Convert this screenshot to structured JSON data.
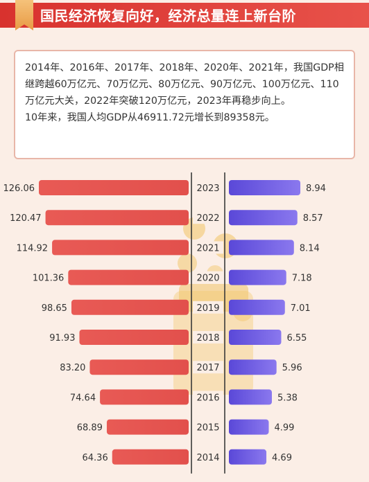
{
  "header": {
    "title": "国民经济恢复向好，经济总量连上新台阶"
  },
  "intro": {
    "paragraph1": "2014年、2016年、2017年、2018年、2020年、2021年，我国GDP相继跨越60万亿元、70万亿元、80万亿元、90万亿元、100万亿元、110万亿元大关，2022年突破120万亿元，2023年再稳步向上。",
    "paragraph2": "10年来，我国人均GDP从46911.72元增长到89358元。"
  },
  "colors": {
    "header_red": "#d8322e",
    "left_bar": "#e2504c",
    "right_bar": "#6f58e4",
    "axis_line": "#3a3a3a"
  },
  "chart_data": {
    "type": "bar",
    "orientation": "horizontal-butterfly",
    "categories": [
      "2023",
      "2022",
      "2021",
      "2020",
      "2019",
      "2018",
      "2017",
      "2016",
      "2015",
      "2014"
    ],
    "series": [
      {
        "side": "left",
        "values": [
          126.06,
          120.47,
          114.92,
          101.36,
          98.65,
          91.93,
          83.2,
          74.64,
          68.89,
          64.36
        ],
        "labels": [
          "126.06",
          "120.47",
          "114.92",
          "101.36",
          "98.65",
          "91.93",
          "83.20",
          "74.64",
          "68.89",
          "64.36"
        ]
      },
      {
        "side": "right",
        "values": [
          8.94,
          8.57,
          8.14,
          7.18,
          7.01,
          6.55,
          5.96,
          5.38,
          4.99,
          4.69
        ],
        "labels": [
          "8.94",
          "8.57",
          "8.14",
          "7.18",
          "7.01",
          "6.55",
          "5.96",
          "5.38",
          "4.99",
          "4.69"
        ]
      }
    ],
    "title": "",
    "xlabel": "",
    "ylabel": ""
  }
}
